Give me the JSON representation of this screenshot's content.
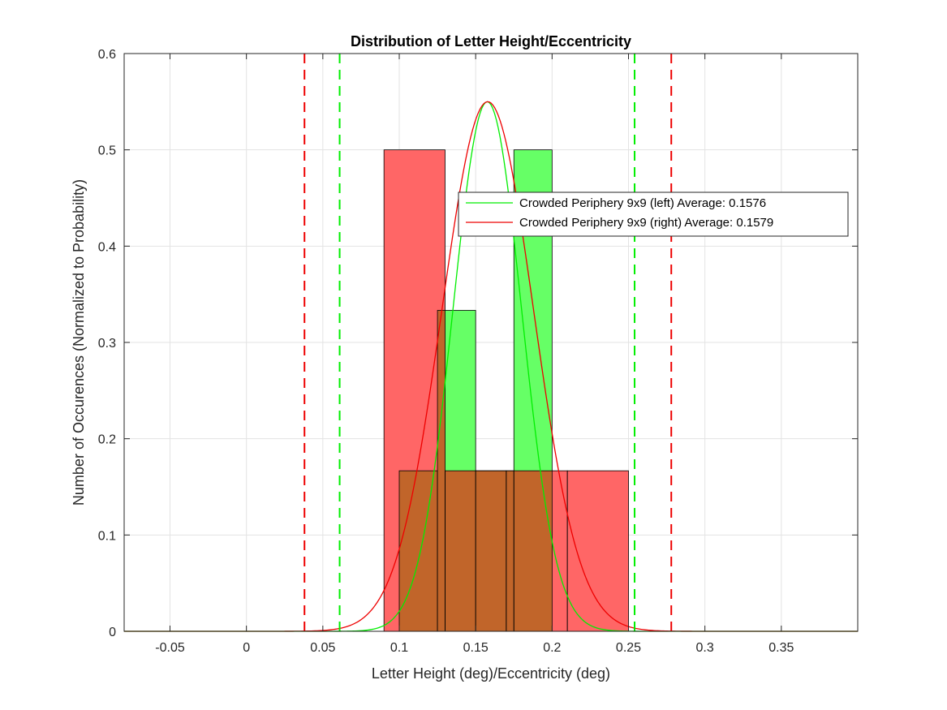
{
  "chart_data": {
    "type": "bar",
    "title": "Distribution of Letter Height/Eccentricity",
    "xlabel": "Letter Height (deg)/Eccentricity (deg)",
    "ylabel": "Number of Occurences (Normalized to Probability)",
    "xlim": [
      -0.08,
      0.4
    ],
    "ylim": [
      0,
      0.6
    ],
    "xticks": [
      -0.05,
      0,
      0.05,
      0.1,
      0.15,
      0.2,
      0.25,
      0.3,
      0.35
    ],
    "xtick_labels": [
      "-0.05",
      "0",
      "0.05",
      "0.1",
      "0.15",
      "0.2",
      "0.25",
      "0.3",
      "0.35"
    ],
    "yticks": [
      0,
      0.1,
      0.2,
      0.3,
      0.4,
      0.5,
      0.6
    ],
    "ytick_labels": [
      "0",
      "0.1",
      "0.2",
      "0.3",
      "0.4",
      "0.5",
      "0.6"
    ],
    "grid": true,
    "legend_position": "upper-right",
    "series": [
      {
        "name": "Crowded Periphery 9x9 (left) Average: 0.1576",
        "color": "#00ee00",
        "bar_fill": "#66ff66",
        "bars": [
          {
            "x0": 0.1,
            "x1": 0.125,
            "value": 0.1667
          },
          {
            "x0": 0.125,
            "x1": 0.15,
            "value": 0.3333
          },
          {
            "x0": 0.15,
            "x1": 0.175,
            "value": 0.1667
          },
          {
            "x0": 0.175,
            "x1": 0.2,
            "value": 0.5
          }
        ],
        "fit": {
          "mean": 0.1576,
          "sd": 0.0225,
          "peak": 0.55
        },
        "bounds": [
          0.061,
          0.254
        ]
      },
      {
        "name": "Crowded Periphery 9x9 (right) Average: 0.1579",
        "color": "#ee0000",
        "bar_fill": "#ff6666",
        "bars": [
          {
            "x0": 0.09,
            "x1": 0.13,
            "value": 0.5
          },
          {
            "x0": 0.13,
            "x1": 0.17,
            "value": 0.1667
          },
          {
            "x0": 0.17,
            "x1": 0.21,
            "value": 0.1667
          },
          {
            "x0": 0.21,
            "x1": 0.25,
            "value": 0.1667
          }
        ],
        "fit": {
          "mean": 0.1579,
          "sd": 0.03,
          "peak": 0.55
        },
        "bounds": [
          0.038,
          0.278
        ]
      }
    ],
    "overlap_fill": "#c1652a"
  }
}
